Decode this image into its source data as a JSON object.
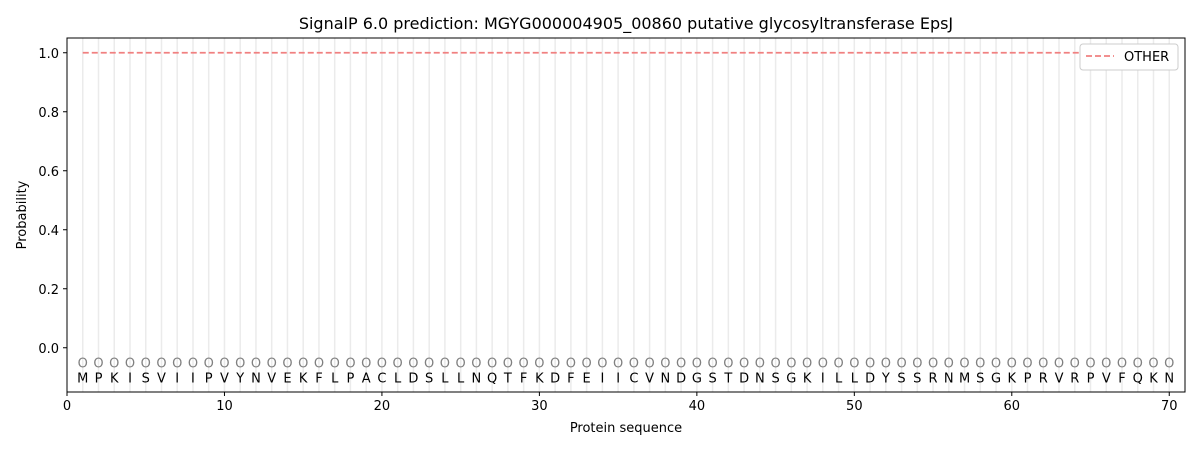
{
  "chart_data": {
    "type": "line",
    "title": "SignalP 6.0 prediction: MGYG000004905_00860 putative glycosyltransferase EpsJ",
    "xlabel": "Protein sequence",
    "ylabel": "Probability",
    "xlim": [
      0,
      71
    ],
    "ylim": [
      -0.15,
      1.05
    ],
    "xticks": [
      0,
      10,
      20,
      30,
      40,
      50,
      60,
      70
    ],
    "yticks": [
      0.0,
      0.2,
      0.4,
      0.6,
      0.8,
      1.0
    ],
    "ytick_labels": [
      "0.0",
      "0.2",
      "0.4",
      "0.6",
      "0.8",
      "1.0"
    ],
    "legend_position": "top-right",
    "series": [
      {
        "name": "OTHER",
        "color": "#f08080",
        "style": "dashed",
        "x_start": 1,
        "x_end": 70,
        "value": 1.0
      }
    ],
    "sequence": [
      "M",
      "P",
      "K",
      "I",
      "S",
      "V",
      "I",
      "I",
      "P",
      "V",
      "Y",
      "N",
      "V",
      "E",
      "K",
      "F",
      "L",
      "P",
      "A",
      "C",
      "L",
      "D",
      "S",
      "L",
      "L",
      "N",
      "Q",
      "T",
      "F",
      "K",
      "D",
      "F",
      "E",
      "I",
      "I",
      "C",
      "V",
      "N",
      "D",
      "G",
      "S",
      "T",
      "D",
      "N",
      "S",
      "G",
      "K",
      "I",
      "L",
      "L",
      "D",
      "Y",
      "S",
      "S",
      "R",
      "N",
      "M",
      "S",
      "G",
      "K",
      "P",
      "R",
      "V",
      "R",
      "P",
      "V",
      "F",
      "Q",
      "K",
      "N"
    ],
    "predicted_labels": "O",
    "marker_color": "#808080"
  }
}
